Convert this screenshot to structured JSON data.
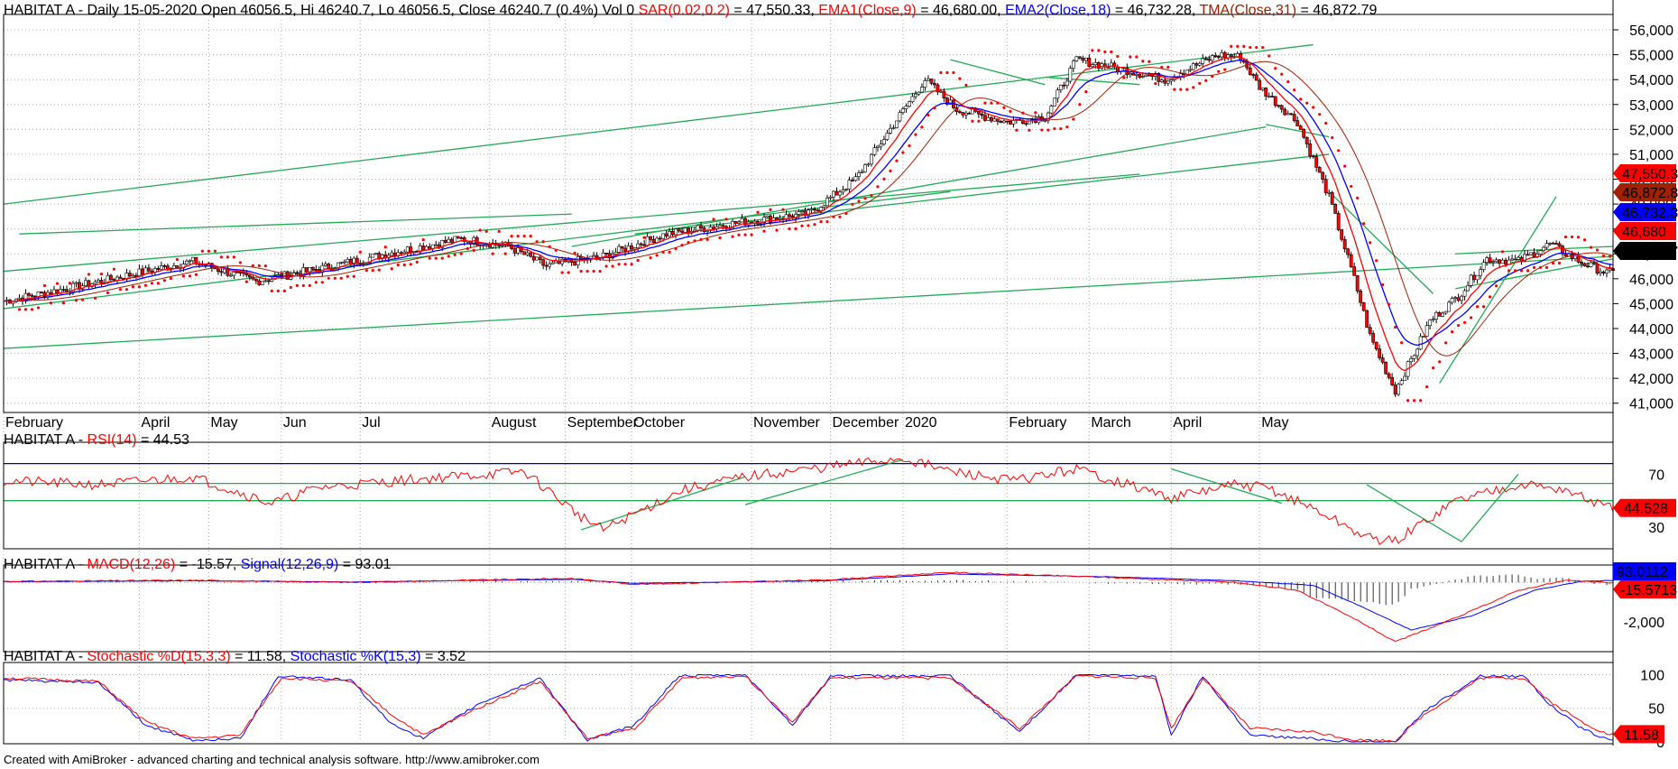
{
  "header": {
    "main": [
      {
        "t": "HABITAT A - Daily 15-05-2020 Open 46056.5, Hi 46240.7, Lo 46056.5, Close 46240.7 (0.4%) Vol 0 ",
        "c": "#000000"
      },
      {
        "t": "SAR(0.02,0.2)",
        "c": "#ff0000"
      },
      {
        "t": " = 47,550.33, ",
        "c": "#000000"
      },
      {
        "t": "EMA1(Close,9)",
        "c": "#ff0000"
      },
      {
        "t": " = 46,680.00, ",
        "c": "#000000"
      },
      {
        "t": "EMA2(Close,18)",
        "c": "#0000ff"
      },
      {
        "t": " = 46,732.28, ",
        "c": "#000000"
      },
      {
        "t": "TMA(Close,31)",
        "c": "#a02000"
      },
      {
        "t": " = 46,872.79",
        "c": "#000000"
      }
    ],
    "rsi": [
      {
        "t": "HABITAT A - ",
        "c": "#000000"
      },
      {
        "t": "RSI(14)",
        "c": "#ff0000"
      },
      {
        "t": " = 44.53",
        "c": "#000000"
      }
    ],
    "macd": [
      {
        "t": "HABITAT A - ",
        "c": "#000000"
      },
      {
        "t": "MACD(12,26)",
        "c": "#ff0000"
      },
      {
        "t": " = -15.57, ",
        "c": "#000000"
      },
      {
        "t": "Signal(12,26,9)",
        "c": "#0000ff"
      },
      {
        "t": " = 93.01",
        "c": "#000000"
      }
    ],
    "stoch": [
      {
        "t": "HABITAT A - ",
        "c": "#000000"
      },
      {
        "t": "Stochastic %D(15,3,3)",
        "c": "#ff0000"
      },
      {
        "t": " = 11.58, ",
        "c": "#000000"
      },
      {
        "t": "Stochastic %K(15,3)",
        "c": "#0000ff"
      },
      {
        "t": " = 3.52",
        "c": "#000000"
      }
    ]
  },
  "footer": "Created with AmiBroker - advanced charting and technical analysis software. http://www.amibroker.com",
  "colors": {
    "up_candle": "#008000",
    "down_candle": "#ff0000",
    "ema1": "#ff0000",
    "ema2": "#0000ff",
    "tma": "#a02000",
    "sar": "#ff0000",
    "trendline": "#22aa55",
    "grid": "#aaaaaa",
    "axis": "#000000"
  },
  "chart_data": [
    {
      "type": "candlestick",
      "title": "HABITAT A - Daily",
      "x_labels": [
        "February",
        "April",
        "May",
        "Jun",
        "Jul",
        "August",
        "September",
        "October",
        "November",
        "December",
        "2020",
        "February",
        "March",
        "April",
        "May"
      ],
      "y_ticks": [
        41000,
        42000,
        43000,
        44000,
        45000,
        46000,
        47000,
        48000,
        49000,
        50000,
        51000,
        52000,
        53000,
        54000,
        55000,
        56000
      ],
      "y_tick_labels": [
        "41,000",
        "42,000",
        "43,000",
        "44,000",
        "45,000",
        "46,000",
        "47,000",
        "48,000",
        "49,000",
        "50,000",
        "51,000",
        "52,000",
        "53,000",
        "54,000",
        "55,000",
        "56,000"
      ],
      "ylim": [
        40700,
        56400
      ],
      "close_keypoints": [
        [
          0,
          45100
        ],
        [
          20,
          45600
        ],
        [
          45,
          46300
        ],
        [
          60,
          46700
        ],
        [
          80,
          45900
        ],
        [
          100,
          46400
        ],
        [
          125,
          47100
        ],
        [
          145,
          47600
        ],
        [
          160,
          47300
        ],
        [
          172,
          46500
        ],
        [
          190,
          46900
        ],
        [
          210,
          47800
        ],
        [
          235,
          48300
        ],
        [
          255,
          48600
        ],
        [
          270,
          50000
        ],
        [
          282,
          52200
        ],
        [
          292,
          54000
        ],
        [
          302,
          52800
        ],
        [
          318,
          52300
        ],
        [
          330,
          52500
        ],
        [
          340,
          54800
        ],
        [
          355,
          54400
        ],
        [
          368,
          54000
        ],
        [
          385,
          55000
        ],
        [
          392,
          54900
        ],
        [
          398,
          53700
        ],
        [
          410,
          52300
        ],
        [
          420,
          49300
        ],
        [
          428,
          46000
        ],
        [
          433,
          43700
        ],
        [
          441,
          41500
        ],
        [
          447,
          43000
        ],
        [
          452,
          44300
        ],
        [
          461,
          45300
        ],
        [
          470,
          46800
        ],
        [
          480,
          46700
        ],
        [
          490,
          47400
        ],
        [
          500,
          46650
        ],
        [
          508,
          46240
        ]
      ],
      "overlay_labels": {
        "sar": "47,550.3",
        "tma": "46,872.8",
        "ema2": "46,732.3",
        "ema1": "46,680",
        "close": "46,240.7"
      },
      "trendlines": [
        [
          [
            0,
            49000
          ],
          [
            415,
            55400
          ]
        ],
        [
          [
            5,
            47800
          ],
          [
            180,
            48600
          ]
        ],
        [
          [
            0,
            46300
          ],
          [
            360,
            50200
          ]
        ],
        [
          [
            0,
            44800
          ],
          [
            300,
            49500
          ]
        ],
        [
          [
            0,
            43200
          ],
          [
            510,
            46900
          ]
        ],
        [
          [
            180,
            47300
          ],
          [
            400,
            52100
          ]
        ],
        [
          [
            200,
            47800
          ],
          [
            420,
            51000
          ]
        ],
        [
          [
            330,
            54100
          ],
          [
            360,
            53800
          ]
        ],
        [
          [
            300,
            54800
          ],
          [
            330,
            53800
          ]
        ],
        [
          [
            400,
            52200
          ],
          [
            420,
            51700
          ]
        ],
        [
          [
            420,
            49500
          ],
          [
            453,
            45400
          ]
        ],
        [
          [
            455,
            41800
          ],
          [
            492,
            49300
          ]
        ],
        [
          [
            460,
            47000
          ],
          [
            510,
            47300
          ]
        ],
        [
          [
            460,
            45600
          ],
          [
            510,
            46800
          ]
        ]
      ]
    },
    {
      "type": "line",
      "title": "RSI(14)",
      "y_ticks": [
        30,
        70
      ],
      "ylim": [
        15,
        90
      ],
      "last": "44.528",
      "keypoints": [
        [
          0,
          65
        ],
        [
          30,
          62
        ],
        [
          60,
          68
        ],
        [
          85,
          48
        ],
        [
          100,
          60
        ],
        [
          130,
          66
        ],
        [
          165,
          72
        ],
        [
          183,
          38
        ],
        [
          190,
          28
        ],
        [
          215,
          58
        ],
        [
          235,
          68
        ],
        [
          270,
          78
        ],
        [
          285,
          82
        ],
        [
          300,
          72
        ],
        [
          320,
          65
        ],
        [
          340,
          74
        ],
        [
          370,
          52
        ],
        [
          390,
          62
        ],
        [
          400,
          60
        ],
        [
          415,
          44
        ],
        [
          432,
          22
        ],
        [
          441,
          19
        ],
        [
          460,
          50
        ],
        [
          480,
          63
        ],
        [
          495,
          58
        ],
        [
          508,
          44.53
        ]
      ]
    },
    {
      "type": "line",
      "title": "MACD(12,26)",
      "y_ticks": [
        -2000
      ],
      "y_tick_labels": [
        "-2,000"
      ],
      "ylim": [
        -3400,
        600
      ],
      "macd_last": "-15.5713",
      "signal_last": "93.0112",
      "macd_keypoints": [
        [
          0,
          50
        ],
        [
          60,
          100
        ],
        [
          110,
          0
        ],
        [
          180,
          200
        ],
        [
          200,
          -100
        ],
        [
          260,
          120
        ],
        [
          300,
          500
        ],
        [
          350,
          250
        ],
        [
          390,
          0
        ],
        [
          410,
          -400
        ],
        [
          430,
          -2000
        ],
        [
          441,
          -3000
        ],
        [
          460,
          -1800
        ],
        [
          480,
          -400
        ],
        [
          495,
          100
        ],
        [
          508,
          -15.57
        ]
      ],
      "signal_keypoints": [
        [
          0,
          30
        ],
        [
          60,
          80
        ],
        [
          110,
          20
        ],
        [
          180,
          150
        ],
        [
          200,
          -50
        ],
        [
          260,
          80
        ],
        [
          300,
          420
        ],
        [
          350,
          280
        ],
        [
          390,
          80
        ],
        [
          415,
          -150
        ],
        [
          430,
          -1200
        ],
        [
          446,
          -2400
        ],
        [
          465,
          -1700
        ],
        [
          485,
          -400
        ],
        [
          500,
          50
        ],
        [
          508,
          93.01
        ]
      ]
    },
    {
      "type": "line",
      "title": "Stochastic",
      "y_ticks": [
        0,
        50,
        100
      ],
      "ylim": [
        0,
        110
      ],
      "d_last": "11.58",
      "k_last": "3.52",
      "d_keypoints": [
        [
          0,
          95
        ],
        [
          30,
          90
        ],
        [
          45,
          30
        ],
        [
          60,
          5
        ],
        [
          75,
          10
        ],
        [
          88,
          95
        ],
        [
          110,
          90
        ],
        [
          123,
          40
        ],
        [
          133,
          10
        ],
        [
          150,
          50
        ],
        [
          170,
          90
        ],
        [
          185,
          5
        ],
        [
          200,
          20
        ],
        [
          215,
          95
        ],
        [
          235,
          98
        ],
        [
          250,
          30
        ],
        [
          262,
          95
        ],
        [
          300,
          95
        ],
        [
          322,
          20
        ],
        [
          340,
          98
        ],
        [
          365,
          95
        ],
        [
          370,
          20
        ],
        [
          380,
          95
        ],
        [
          395,
          20
        ],
        [
          415,
          15
        ],
        [
          428,
          3
        ],
        [
          441,
          2
        ],
        [
          450,
          40
        ],
        [
          468,
          95
        ],
        [
          482,
          95
        ],
        [
          490,
          60
        ],
        [
          500,
          30
        ],
        [
          508,
          11.58
        ]
      ],
      "k_keypoints": [
        [
          0,
          92
        ],
        [
          30,
          88
        ],
        [
          45,
          25
        ],
        [
          60,
          2
        ],
        [
          75,
          5
        ],
        [
          87,
          98
        ],
        [
          110,
          92
        ],
        [
          122,
          30
        ],
        [
          133,
          5
        ],
        [
          150,
          55
        ],
        [
          170,
          95
        ],
        [
          185,
          2
        ],
        [
          200,
          25
        ],
        [
          214,
          98
        ],
        [
          235,
          100
        ],
        [
          250,
          25
        ],
        [
          262,
          98
        ],
        [
          300,
          98
        ],
        [
          322,
          15
        ],
        [
          340,
          100
        ],
        [
          365,
          98
        ],
        [
          370,
          10
        ],
        [
          380,
          98
        ],
        [
          395,
          10
        ],
        [
          415,
          5
        ],
        [
          428,
          0
        ],
        [
          441,
          0
        ],
        [
          450,
          45
        ],
        [
          468,
          98
        ],
        [
          482,
          98
        ],
        [
          490,
          55
        ],
        [
          500,
          20
        ],
        [
          508,
          3.52
        ]
      ]
    }
  ]
}
